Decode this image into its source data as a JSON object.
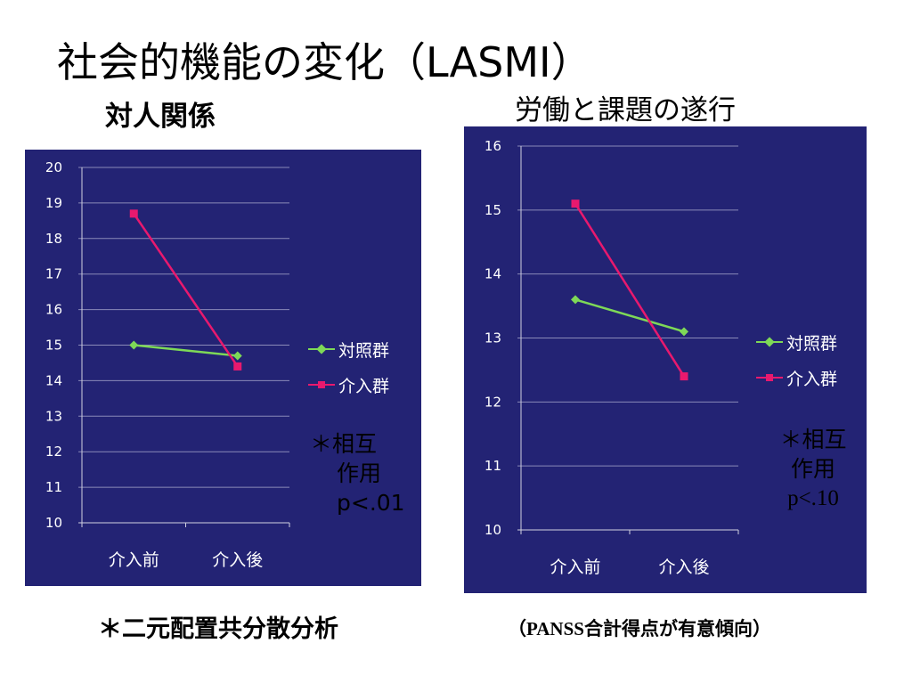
{
  "slide": {
    "title": "社会的機能の変化（LASMI）",
    "footer_left": "＊二元配置共分散分析",
    "footer_right": "（PANSS合計得点が有意傾向）"
  },
  "colors": {
    "panel_bg": "#232374",
    "control": "#7ED957",
    "intervention": "#E8196E",
    "axis_text": "#ffffff"
  },
  "legend": {
    "series": [
      {
        "name": "対照群",
        "marker": "diamond",
        "color": "#7ED957"
      },
      {
        "name": "介入群",
        "marker": "square",
        "color": "#E8196E"
      }
    ]
  },
  "chart_data": [
    {
      "type": "line",
      "title": "対人関係",
      "categories": [
        "介入前",
        "介入後"
      ],
      "ylim": [
        10,
        20
      ],
      "y_ticks": [
        10,
        11,
        12,
        13,
        14,
        15,
        16,
        17,
        18,
        19,
        20
      ],
      "grid": true,
      "legend_position": "right",
      "series": [
        {
          "name": "対照群",
          "values": [
            15.0,
            14.7
          ]
        },
        {
          "name": "介入群",
          "values": [
            18.7,
            14.4
          ]
        }
      ],
      "annotation": [
        "＊相互",
        "作用",
        "p<.01"
      ]
    },
    {
      "type": "line",
      "title": "労働と課題の遂行",
      "categories": [
        "介入前",
        "介入後"
      ],
      "ylim": [
        10,
        16
      ],
      "y_ticks": [
        10,
        11,
        12,
        13,
        14,
        15,
        16
      ],
      "grid": true,
      "legend_position": "right",
      "series": [
        {
          "name": "対照群",
          "values": [
            13.6,
            13.1
          ]
        },
        {
          "name": "介入群",
          "values": [
            15.1,
            12.4
          ]
        }
      ],
      "annotation": [
        "＊相互",
        "作用",
        "p<.10"
      ]
    }
  ]
}
